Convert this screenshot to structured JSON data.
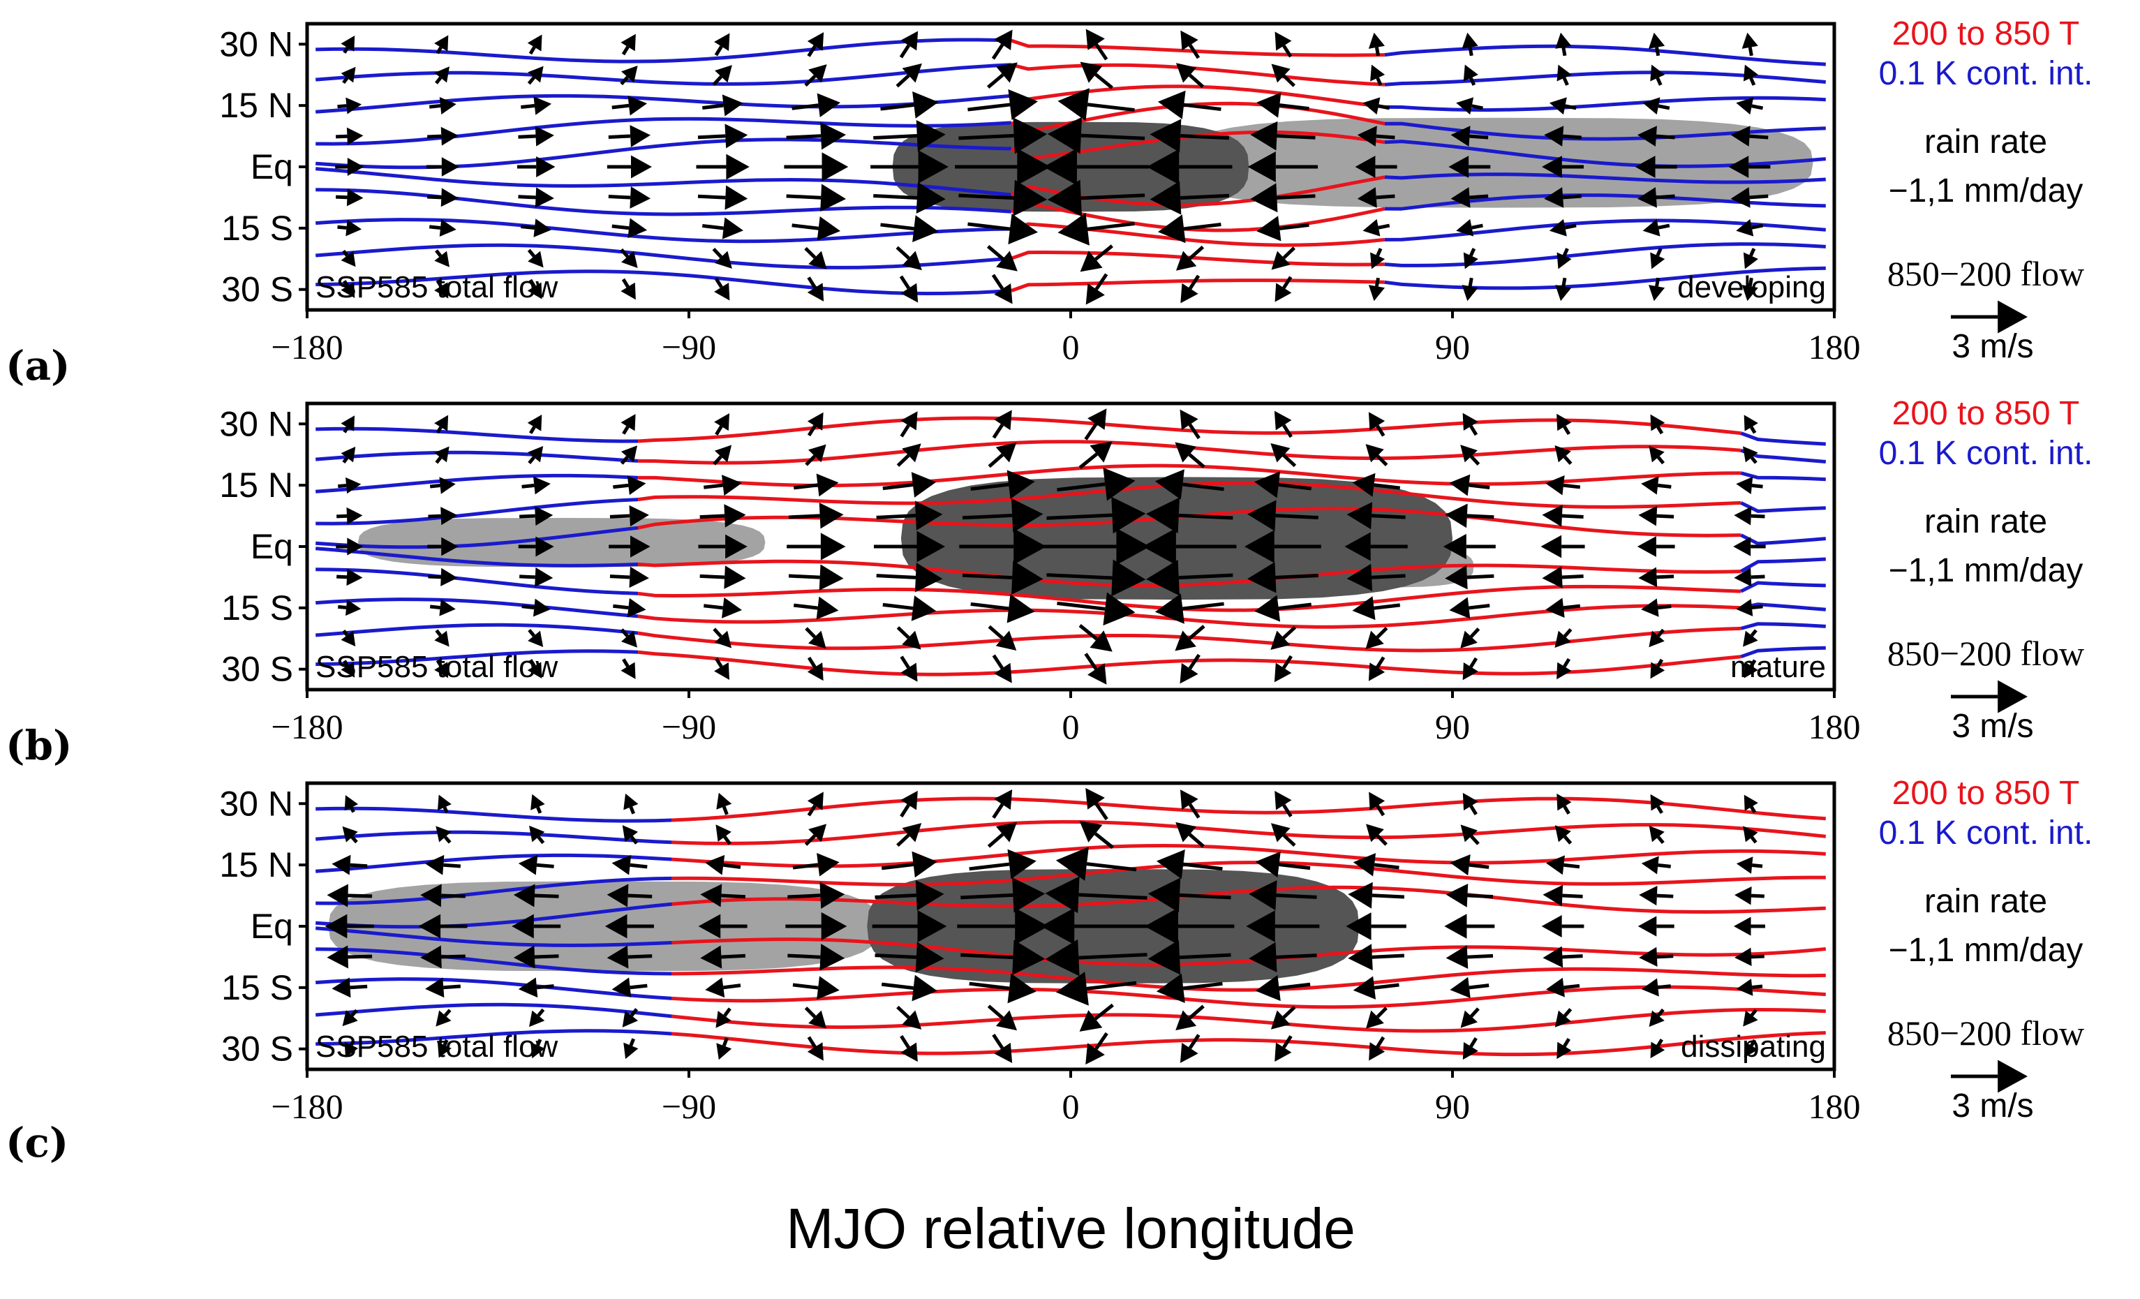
{
  "chart_data": {
    "type": "vector-contour",
    "xlabel": "MJO relative longitude",
    "xlim": [
      -180,
      180
    ],
    "xticks": [
      -180,
      -90,
      0,
      90,
      180
    ],
    "xtick_labels": [
      "−180",
      "−90",
      "0",
      "90",
      "180"
    ],
    "ylim": [
      -35,
      35
    ],
    "yticks": [
      30,
      15,
      0,
      -15,
      -30
    ],
    "ytick_labels": [
      "30 N",
      "15 N",
      "Eq",
      "15 S",
      "30 S"
    ],
    "legend": {
      "temp_label": "200 to 850 T",
      "contour_interval": "0.1 K cont. int.",
      "rain_label": "rain rate",
      "rain_levels": "−1,1 mm/day",
      "flow_label": "850−200 flow",
      "ref_vector_label": "3 m/s",
      "ref_vector_ms": 3
    },
    "colors": {
      "warm": "#e8141c",
      "cold": "#1a1acc",
      "rain_wet": "#555555",
      "rain_dry": "#a3a3a3",
      "vector": "#000000"
    },
    "panels": [
      {
        "label": "(a)",
        "left_text": "SSP585 total flow",
        "phase": "developing",
        "rain_wet": [
          {
            "lon": 0,
            "lat": 0,
            "half_width_lon": 42,
            "half_height_lat": 11
          }
        ],
        "rain_dry": [
          {
            "lon": 100,
            "lat": 1,
            "half_width_lon": 75,
            "half_height_lat": 11
          }
        ],
        "warm_lon": [
          -10,
          75
        ],
        "convergence_lon": 0
      },
      {
        "label": "(b)",
        "left_text": "SSP585 total flow",
        "phase": "mature",
        "rain_wet": [
          {
            "lon": 25,
            "lat": 2,
            "half_width_lon": 65,
            "half_height_lat": 15
          }
        ],
        "rain_dry": [
          {
            "lon": -120,
            "lat": 1,
            "half_width_lon": 48,
            "half_height_lat": 6
          },
          {
            "lon": 70,
            "lat": -5,
            "half_width_lon": 25,
            "half_height_lat": 5
          }
        ],
        "warm_lon": [
          -100,
          160
        ],
        "convergence_lon": 10
      },
      {
        "label": "(c)",
        "left_text": "SSP585 total flow",
        "phase": "dissipating",
        "rain_wet": [
          {
            "lon": 10,
            "lat": 0,
            "half_width_lon": 58,
            "half_height_lat": 14
          }
        ],
        "rain_dry": [
          {
            "lon": -110,
            "lat": 0,
            "half_width_lon": 65,
            "half_height_lat": 11
          }
        ],
        "warm_lon": [
          -90,
          180
        ],
        "convergence_lon": 5
      }
    ]
  }
}
